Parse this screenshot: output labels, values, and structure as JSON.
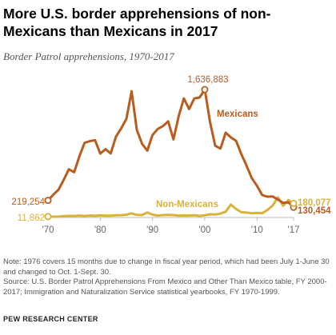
{
  "title": "More U.S. border apprehensions of non-Mexicans than Mexicans in 2017",
  "subtitle": "Border Patrol apprehensions, 1970-2017",
  "note": "Note: 1976 covers 15 months due to change in fiscal year period, which had been July 1-June 30 and changed to Oct. 1-Sept. 30.",
  "source_text": "Source: U.S. Border Patrol Apprehensions From Mexico and Other Than Mexico table, FY 2000-2017; Immigration and Naturalization Service statistical yearbooks, FY 1970-1999.",
  "credit": "PEW RESEARCH CENTER",
  "colors": {
    "mexicans": "#b85c1f",
    "non_mexicans": "#d9b23a",
    "axis": "#bbbbbb"
  },
  "chart_data": {
    "type": "line",
    "title": "More U.S. border apprehensions of non-Mexicans than Mexicans in 2017",
    "subtitle": "Border Patrol apprehensions, 1970-2017",
    "x_ticks": [
      "'70",
      "'80",
      "'90",
      "'00",
      "'10",
      "'17"
    ],
    "xlim": [
      1970,
      2017
    ],
    "ylim": [
      0,
      1800000
    ],
    "grid": false,
    "x": [
      1970,
      1971,
      1972,
      1973,
      1974,
      1975,
      1976,
      1977,
      1978,
      1979,
      1980,
      1981,
      1982,
      1983,
      1984,
      1985,
      1986,
      1987,
      1988,
      1989,
      1990,
      1991,
      1992,
      1993,
      1994,
      1995,
      1996,
      1997,
      1998,
      1999,
      2000,
      2001,
      2002,
      2003,
      2004,
      2005,
      2006,
      2007,
      2008,
      2009,
      2010,
      2011,
      2012,
      2013,
      2014,
      2015,
      2016,
      2017
    ],
    "series": [
      {
        "name": "Mexicans",
        "values": [
          219254,
          290152,
          355099,
          480588,
          616630,
          579448,
          781438,
          954778,
          976667,
          988830,
          817479,
          874161,
          819919,
          1033974,
          1138566,
          1262435,
          1615854,
          1122067,
          943063,
          854939,
          1054841,
          1132033,
          1168946,
          1230124,
          999890,
          1293508,
          1523141,
          1387650,
          1522918,
          1534515,
          1636883,
          1224047,
          917993,
          882012,
          1085006,
          1023905,
          981066,
          808773,
          661766,
          503386,
          404365,
          286154,
          265755,
          267734,
          229178,
          186017,
          192969,
          130454
        ],
        "start_label": "219,254",
        "peak_label": "1,636,883",
        "end_label": "130,454"
      },
      {
        "name": "Non-Mexicans",
        "values": [
          11862,
          10000,
          10500,
          18000,
          20000,
          19000,
          25000,
          19000,
          25000,
          21000,
          27000,
          22000,
          23000,
          29000,
          30000,
          36000,
          52000,
          34000,
          32000,
          63000,
          36000,
          25000,
          31000,
          33000,
          31000,
          22000,
          26000,
          25000,
          28000,
          20000,
          28000,
          41000,
          38000,
          49000,
          75000,
          165000,
          108000,
          68000,
          62000,
          53000,
          59000,
          54000,
          96000,
          153000,
          257473,
          150000,
          223000,
          180077
        ],
        "start_label": "11,862",
        "end_label": "180,077"
      }
    ]
  }
}
